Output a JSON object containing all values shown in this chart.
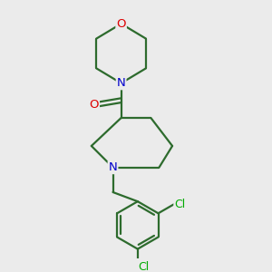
{
  "background_color": "#ebebeb",
  "bond_color": "#2d6b2d",
  "atom_colors": {
    "N": "#0000cc",
    "O": "#dd0000",
    "Cl": "#00aa00",
    "C": "#000000"
  },
  "figsize": [
    3.0,
    3.0
  ],
  "dpi": 100,
  "lw": 1.6,
  "fontsize": 9.5
}
